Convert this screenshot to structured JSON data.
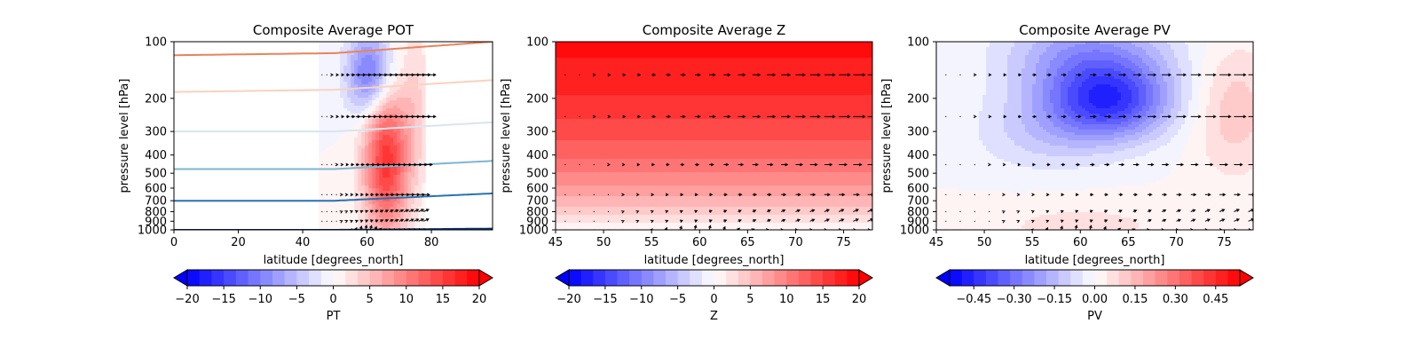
{
  "chart_data": [
    {
      "type": "contour",
      "title": "Composite Average POT",
      "xlabel": "latitude [degrees_north]",
      "ylabel": "pressure level [hPa]",
      "xlim": [
        0,
        99
      ],
      "ylim": [
        1000,
        100
      ],
      "yscale": "log",
      "xticks": [
        0,
        20,
        40,
        60,
        80
      ],
      "yticks": [
        100,
        200,
        300,
        400,
        500,
        600,
        700,
        800,
        900,
        1000
      ],
      "field_extent": [
        45,
        78
      ],
      "field_blobs": [
        {
          "lat": 66,
          "p": 420,
          "value": 16,
          "sig_lat": 5,
          "sig_logp": 0.28
        },
        {
          "lat": 61,
          "p": 150,
          "value": -12,
          "sig_lat": 5,
          "sig_logp": 0.16
        },
        {
          "lat": 75,
          "p": 200,
          "value": 3,
          "sig_lat": 3,
          "sig_logp": 0.3
        }
      ],
      "isentropes": [
        {
          "color": "#e8835c",
          "p_at": [
            [
              0,
              118
            ],
            [
              50,
              115
            ],
            [
              99,
              100
            ]
          ]
        },
        {
          "color": "#f8d2bf",
          "p_at": [
            [
              0,
              185
            ],
            [
              50,
              180
            ],
            [
              99,
              160
            ]
          ]
        },
        {
          "color": "#d8e5ee",
          "p_at": [
            [
              0,
              300
            ],
            [
              50,
              300
            ],
            [
              99,
              268
            ]
          ]
        },
        {
          "color": "#7cb6d3",
          "p_at": [
            [
              0,
              475
            ],
            [
              50,
              475
            ],
            [
              99,
              430
            ]
          ]
        },
        {
          "color": "#2771b3",
          "p_at": [
            [
              0,
              700
            ],
            [
              50,
              700
            ],
            [
              99,
              640
            ]
          ]
        },
        {
          "color": "#08306b",
          "p_at": [
            [
              0,
              1000
            ],
            [
              50,
              1000
            ],
            [
              99,
              985
            ]
          ]
        }
      ],
      "colorbar": {
        "label": "PT",
        "min": -20,
        "max": 20,
        "ticks": [
          -20,
          -15,
          -10,
          -5,
          0,
          5,
          10,
          15,
          20
        ],
        "tick_labels": [
          "−20",
          "−15",
          "−10",
          "−5",
          "0",
          "5",
          "10",
          "15",
          "20"
        ]
      }
    },
    {
      "type": "contour",
      "title": "Composite Average Z",
      "xlabel": "latitude [degrees_north]",
      "ylabel": "pressure level [hPa]",
      "xlim": [
        45,
        78
      ],
      "ylim": [
        1000,
        100
      ],
      "yscale": "log",
      "xticks": [
        45,
        50,
        55,
        60,
        65,
        70,
        75
      ],
      "yticks": [
        100,
        200,
        300,
        400,
        500,
        600,
        700,
        800,
        900,
        1000
      ],
      "field_extent": [
        45,
        78
      ],
      "field_vertical": {
        "p": [
          100,
          200,
          300,
          400,
          500,
          600,
          700,
          800,
          900,
          1000
        ],
        "value": [
          19,
          16.5,
          14,
          12,
          10,
          8,
          6,
          4,
          2,
          0
        ]
      },
      "colorbar": {
        "label": "Z",
        "min": -20,
        "max": 20,
        "ticks": [
          -20,
          -15,
          -10,
          -5,
          0,
          5,
          10,
          15,
          20
        ],
        "tick_labels": [
          "−20",
          "−15",
          "−10",
          "−5",
          "0",
          "5",
          "10",
          "15",
          "20"
        ]
      }
    },
    {
      "type": "contour",
      "title": "Composite Average PV",
      "xlabel": "latitude [degrees_north]",
      "ylabel": "pressure level [hPa]",
      "xlim": [
        45,
        78
      ],
      "ylim": [
        1000,
        100
      ],
      "yscale": "log",
      "xticks": [
        45,
        50,
        55,
        60,
        65,
        70,
        75
      ],
      "yticks": [
        100,
        200,
        300,
        400,
        500,
        600,
        700,
        800,
        900,
        1000
      ],
      "field_extent": [
        45,
        78
      ],
      "field_blobs": [
        {
          "lat": 63,
          "p": 210,
          "value": -0.38,
          "sig_lat": 4.5,
          "sig_logp": 0.14
        },
        {
          "lat": 61,
          "p": 120,
          "value": -0.22,
          "sig_lat": 6,
          "sig_logp": 0.16
        },
        {
          "lat": 56,
          "p": 300,
          "value": -0.1,
          "sig_lat": 5,
          "sig_logp": 0.15
        },
        {
          "lat": 76,
          "p": 230,
          "value": 0.12,
          "sig_lat": 3,
          "sig_logp": 0.25
        },
        {
          "lat": 60,
          "p": 950,
          "value": 0.06,
          "sig_lat": 8,
          "sig_logp": 0.1
        }
      ],
      "colorbar": {
        "label": "PV",
        "min": -0.54,
        "max": 0.54,
        "ticks": [
          -0.45,
          -0.3,
          -0.15,
          0,
          0.15,
          0.3,
          0.45
        ],
        "tick_labels": [
          "−0.45",
          "−0.30",
          "−0.15",
          "0.00",
          "0.15",
          "0.30",
          "0.45"
        ]
      }
    }
  ],
  "wind_vectors": {
    "pressure_levels": [
      150,
      250,
      450,
      650,
      800,
      900,
      1000
    ],
    "latitude_start": 46,
    "latitude_step": 1.5,
    "latitude_end": 78
  }
}
